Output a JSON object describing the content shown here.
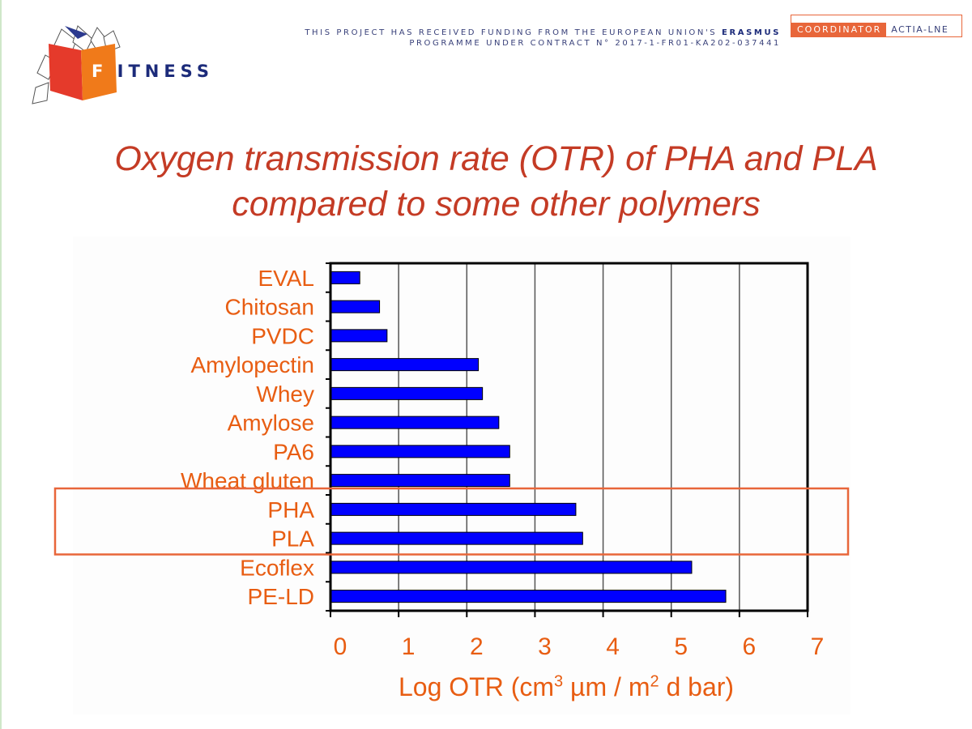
{
  "header": {
    "logo_text": "ITNESS",
    "logo_letter": "F",
    "funding_line1_pre": "THIS PROJECT HAS RECEIVED FUNDING FROM THE EUROPEAN UNION'S ",
    "funding_line1_strong": "ERASMUS",
    "funding_line2": "PROGRAMME UNDER CONTRACT N° 2017-1-FR01-KA202-037441",
    "coordinator_label": "COORDINATOR",
    "coordinator_value": "ACTIA-LNE"
  },
  "slide": {
    "title_line1": "Oxygen transmission rate (OTR) of PHA and PLA",
    "title_line2": "compared to some other polymers"
  },
  "colors": {
    "title": "#c43b25",
    "labels": "#e85d12",
    "bar": "#0000ff",
    "highlight_box": "#e8663a"
  },
  "chart_data": {
    "type": "bar",
    "orientation": "horizontal",
    "categories": [
      "EVAL",
      "Chitosan",
      "PVDC",
      "Amylopectin",
      "Whey",
      "Amylose",
      "PA6",
      "Wheat gluten",
      "PHA",
      "PLA",
      "Ecoflex",
      "PE-LD"
    ],
    "values": [
      0.43,
      0.72,
      0.83,
      2.17,
      2.23,
      2.47,
      2.63,
      2.63,
      3.6,
      3.7,
      5.3,
      5.8
    ],
    "xlim": [
      0,
      7
    ],
    "xticks": [
      "0",
      "1",
      "2",
      "3",
      "4",
      "5",
      "6",
      "7"
    ],
    "xlabel_main": "Log OTR (cm",
    "xlabel_sup1": "3",
    "xlabel_mid": " µm / m",
    "xlabel_sup2": "2",
    "xlabel_end": " d bar)",
    "grid": "vertical",
    "highlighted": [
      "PHA",
      "PLA"
    ]
  }
}
